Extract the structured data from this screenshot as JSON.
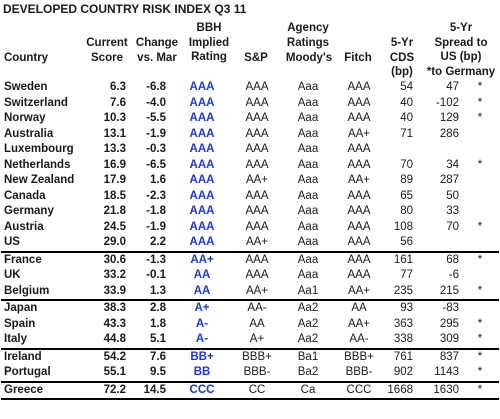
{
  "title": "DEVELOPED COUNTRY RISK INDEX Q3 11",
  "headers": {
    "country": "Country",
    "score": [
      "Current",
      "Score"
    ],
    "change": [
      "Change",
      "vs. Mar"
    ],
    "bbh": [
      "BBH",
      "Implied",
      "Rating"
    ],
    "sp": "S&P",
    "agency_group": [
      "Agency",
      "Ratings"
    ],
    "moodys": "Moody's",
    "fitch": "Fitch",
    "cds": [
      "5-Yr",
      "CDS",
      "(bp)"
    ],
    "spread": [
      "5-Yr",
      "Spread to",
      "US (bp)",
      "*to Germany"
    ]
  },
  "colors": {
    "bbh_rating": "#1f38c8",
    "rule": "#000000"
  },
  "rows": [
    {
      "country": "Sweden",
      "score": "6.3",
      "change": "-6.8",
      "bbh": "AAA",
      "sp": "AAA",
      "moodys": "Aaa",
      "fitch": "AAA",
      "cds": "54",
      "spread": "47",
      "star": "*"
    },
    {
      "country": "Switzerland",
      "score": "7.6",
      "change": "-4.0",
      "bbh": "AAA",
      "sp": "AAA",
      "moodys": "Aaa",
      "fitch": "AAA",
      "cds": "40",
      "spread": "-102",
      "star": "*"
    },
    {
      "country": "Norway",
      "score": "10.3",
      "change": "-5.5",
      "bbh": "AAA",
      "sp": "AAA",
      "moodys": "Aaa",
      "fitch": "AAA",
      "cds": "40",
      "spread": "129",
      "star": "*"
    },
    {
      "country": "Australia",
      "score": "13.1",
      "change": "-1.9",
      "bbh": "AAA",
      "sp": "AAA",
      "moodys": "Aaa",
      "fitch": "AA+",
      "cds": "71",
      "spread": "286",
      "star": ""
    },
    {
      "country": "Luxembourg",
      "score": "13.3",
      "change": "-0.3",
      "bbh": "AAA",
      "sp": "AAA",
      "moodys": "Aaa",
      "fitch": "AAA",
      "cds": "",
      "spread": "",
      "star": ""
    },
    {
      "country": "Netherlands",
      "score": "16.9",
      "change": "-6.5",
      "bbh": "AAA",
      "sp": "AAA",
      "moodys": "Aaa",
      "fitch": "AAA",
      "cds": "70",
      "spread": "34",
      "star": "*"
    },
    {
      "country": "New Zealand",
      "score": "17.9",
      "change": "1.6",
      "bbh": "AAA",
      "sp": "AA+",
      "moodys": "Aaa",
      "fitch": "AA+",
      "cds": "89",
      "spread": "287",
      "star": ""
    },
    {
      "country": "Canada",
      "score": "18.5",
      "change": "-2.3",
      "bbh": "AAA",
      "sp": "AAA",
      "moodys": "Aaa",
      "fitch": "AAA",
      "cds": "65",
      "spread": "50",
      "star": ""
    },
    {
      "country": "Germany",
      "score": "21.8",
      "change": "-1.8",
      "bbh": "AAA",
      "sp": "AAA",
      "moodys": "Aaa",
      "fitch": "AAA",
      "cds": "80",
      "spread": "33",
      "star": ""
    },
    {
      "country": "Austria",
      "score": "24.5",
      "change": "-1.9",
      "bbh": "AAA",
      "sp": "AAA",
      "moodys": "Aaa",
      "fitch": "AAA",
      "cds": "108",
      "spread": "70",
      "star": "*"
    },
    {
      "country": "US",
      "score": "29.0",
      "change": "2.2",
      "bbh": "AAA",
      "sp": "AA+",
      "moodys": "Aaa",
      "fitch": "AAA",
      "cds": "56",
      "spread": "",
      "star": ""
    },
    {
      "country": "France",
      "score": "30.6",
      "change": "-1.3",
      "bbh": "AA+",
      "sp": "AAA",
      "moodys": "Aaa",
      "fitch": "AAA",
      "cds": "161",
      "spread": "68",
      "star": "*",
      "sep": true
    },
    {
      "country": "UK",
      "score": "33.2",
      "change": "-0.1",
      "bbh": "AA",
      "sp": "AAA",
      "moodys": "Aaa",
      "fitch": "AAA",
      "cds": "77",
      "spread": "-6",
      "star": ""
    },
    {
      "country": "Belgium",
      "score": "33.9",
      "change": "1.3",
      "bbh": "AA",
      "sp": "AA+",
      "moodys": "Aa1",
      "fitch": "AA+",
      "cds": "235",
      "spread": "215",
      "star": "*"
    },
    {
      "country": "Japan",
      "score": "38.3",
      "change": "2.8",
      "bbh": "A+",
      "sp": "AA-",
      "moodys": "Aa2",
      "fitch": "AA",
      "cds": "93",
      "spread": "-83",
      "star": "",
      "sep": true
    },
    {
      "country": "Spain",
      "score": "43.3",
      "change": "1.8",
      "bbh": "A-",
      "sp": "AA",
      "moodys": "Aa2",
      "fitch": "AA+",
      "cds": "363",
      "spread": "295",
      "star": "*"
    },
    {
      "country": "Italy",
      "score": "44.8",
      "change": "5.1",
      "bbh": "A-",
      "sp": "A+",
      "moodys": "Aa2",
      "fitch": "AA-",
      "cds": "338",
      "spread": "309",
      "star": "*"
    },
    {
      "country": "Ireland",
      "score": "54.2",
      "change": "7.6",
      "bbh": "BB+",
      "sp": "BBB+",
      "moodys": "Ba1",
      "fitch": "BBB+",
      "cds": "761",
      "spread": "837",
      "star": "*",
      "sep": true
    },
    {
      "country": "Portugal",
      "score": "55.1",
      "change": "9.5",
      "bbh": "BB",
      "sp": "BBB-",
      "moodys": "Ba2",
      "fitch": "BBB-",
      "cds": "902",
      "spread": "1143",
      "star": "*"
    },
    {
      "country": "Greece",
      "score": "72.2",
      "change": "14.5",
      "bbh": "CCC",
      "sp": "CC",
      "moodys": "Ca",
      "fitch": "CCC",
      "cds": "1668",
      "spread": "1630",
      "star": "*",
      "sep": true,
      "last": true
    }
  ]
}
